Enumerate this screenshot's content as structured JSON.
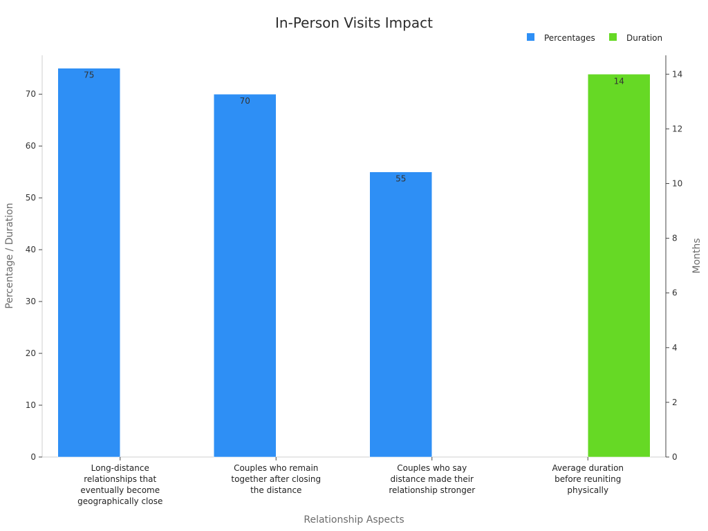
{
  "chart_data": {
    "type": "bar",
    "title": "In-Person Visits Impact",
    "xlabel": "Relationship Aspects",
    "ylabel": "Percentage / Duration",
    "y2label": "Months",
    "ylim": [
      0,
      77.5
    ],
    "y2lim": [
      0,
      14.69
    ],
    "yticks": [
      0,
      10,
      20,
      30,
      40,
      50,
      60,
      70
    ],
    "y2ticks": [
      0,
      2,
      4,
      6,
      8,
      10,
      12,
      14
    ],
    "legend_position": "top-right",
    "categories": [
      [
        "Long-distance",
        "relationships that",
        "eventually become",
        "geographically close"
      ],
      [
        "Couples who remain",
        "together after closing",
        "the distance"
      ],
      [
        "Couples who say",
        "distance made their",
        "relationship stronger"
      ],
      [
        "Average duration",
        "before reuniting",
        "physically"
      ]
    ],
    "series": [
      {
        "name": "Percentages",
        "color": "#2e8ff5",
        "axis": "left",
        "values": [
          75,
          70,
          55,
          null
        ]
      },
      {
        "name": "Duration",
        "color": "#66d925",
        "axis": "right",
        "values": [
          null,
          null,
          null,
          14
        ]
      }
    ]
  }
}
